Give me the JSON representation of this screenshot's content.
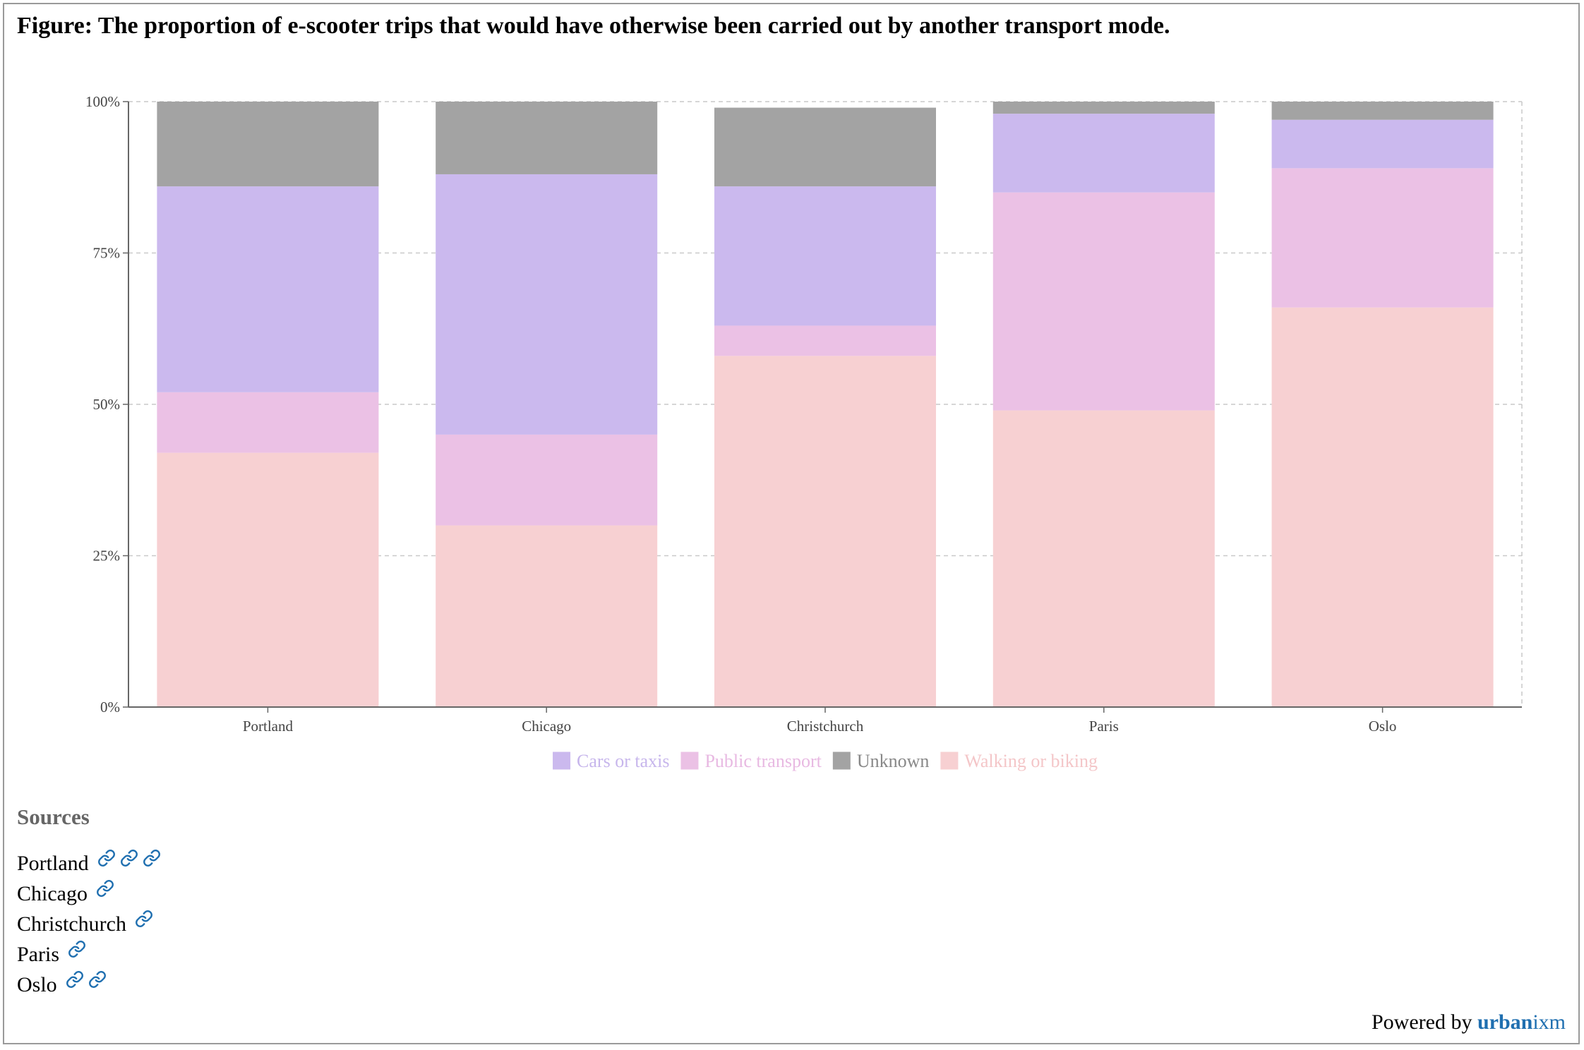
{
  "title": "Figure: The proportion of e-scooter trips that would have otherwise been carried out by another transport mode.",
  "chart_data": {
    "type": "bar",
    "stacked": true,
    "categories": [
      "Portland",
      "Chicago",
      "Christchurch",
      "Paris",
      "Oslo"
    ],
    "series": [
      {
        "name": "Walking or biking",
        "color": "#f7d0d2",
        "values": [
          42,
          30,
          58,
          49,
          66
        ]
      },
      {
        "name": "Public transport",
        "color": "#ebc1e5",
        "values": [
          10,
          15,
          5,
          36,
          23
        ]
      },
      {
        "name": "Cars or taxis",
        "color": "#cbb9ee",
        "values": [
          34,
          43,
          23,
          13,
          8
        ]
      },
      {
        "name": "Unknown",
        "color": "#a3a3a3",
        "values": [
          14,
          12,
          13,
          2,
          3
        ]
      }
    ],
    "legend_order": [
      "Cars or taxis",
      "Public transport",
      "Unknown",
      "Walking or biking"
    ],
    "legend_text_colors": [
      "#c7b6ec",
      "#e8b9e2",
      "#888888",
      "#f4c6c8"
    ],
    "y_ticks": [
      "0%",
      "25%",
      "50%",
      "75%",
      "100%"
    ],
    "ylim": [
      0,
      100
    ],
    "grid": true,
    "legend_position": "bottom"
  },
  "sources": {
    "heading": "Sources",
    "items": [
      {
        "label": "Portland",
        "links": 3
      },
      {
        "label": "Chicago",
        "links": 1
      },
      {
        "label": "Christchurch",
        "links": 1
      },
      {
        "label": "Paris",
        "links": 1
      },
      {
        "label": "Oslo",
        "links": 2
      }
    ]
  },
  "footer": {
    "powered_prefix": "Powered by",
    "brand_bold": "urban",
    "brand_rest": "ixm"
  },
  "icons": {
    "link": "link-icon"
  },
  "link_color": "#1f6fb0"
}
